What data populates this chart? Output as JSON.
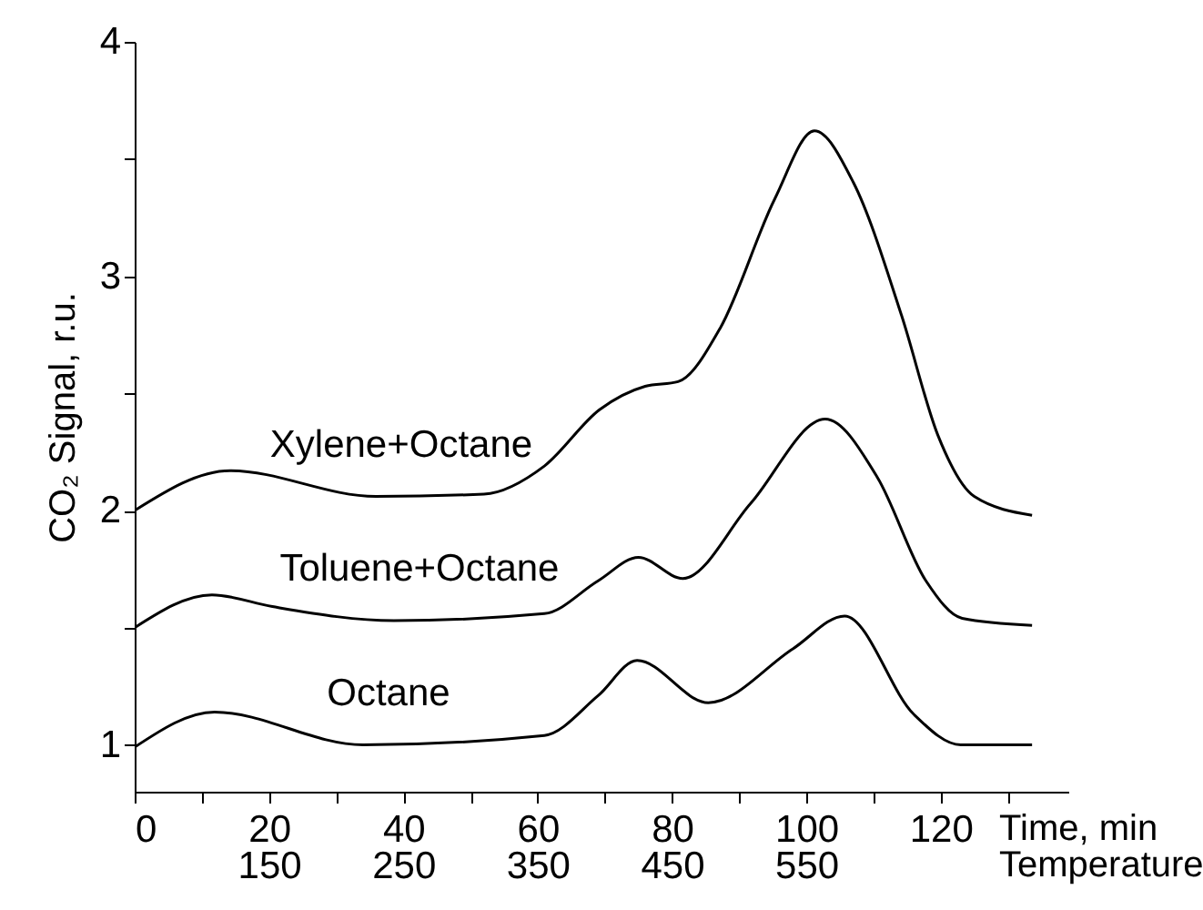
{
  "chart_data": {
    "type": "line",
    "xlabel": "Time, min",
    "x2label": "Temperature",
    "x2lim": [
      50,
      745
    ],
    "x2ticks": [
      150,
      250,
      350,
      450,
      550
    ],
    "ylabel": "CO₂ Signal, r.u.",
    "xlim": [
      0,
      139
    ],
    "ylim": [
      0.8,
      4
    ],
    "xticks": [
      0,
      {
        "value": 10,
        "label": null
      },
      20,
      {
        "value": 30,
        "label": null
      },
      40,
      {
        "value": 50,
        "label": null
      },
      60,
      {
        "value": 70,
        "label": null
      },
      80,
      {
        "value": 90,
        "label": null
      },
      100,
      {
        "value": 110,
        "label": null
      },
      120,
      {
        "value": 130,
        "label": null
      }
    ],
    "yticks": [
      1,
      {
        "value": 1.5,
        "label": null
      },
      2,
      {
        "value": 2.5,
        "label": null
      },
      3,
      {
        "value": 3.5,
        "label": null
      },
      4
    ],
    "grid": false,
    "legend": false,
    "marker": "none",
    "line_style": "solid",
    "series": [
      {
        "name": "Octane",
        "color": "#000000",
        "x": [
          0,
          11.9,
          34,
          61,
          69,
          74.8,
          85.4,
          98,
          105.7,
          116,
          123,
          133.6
        ],
        "values": [
          0.99,
          1.14,
          1.0,
          1.04,
          1.21,
          1.36,
          1.18,
          1.41,
          1.55,
          1.13,
          1.0,
          1.0
        ]
      },
      {
        "name": "Toluene+Octane",
        "color": "#000000",
        "x": [
          0,
          11.5,
          20.5,
          38.6,
          61,
          69,
          75,
          81.6,
          91.7,
          102.8,
          110.6,
          117.8,
          123.2,
          133.6
        ],
        "values": [
          1.5,
          1.64,
          1.59,
          1.53,
          1.56,
          1.7,
          1.8,
          1.71,
          2.03,
          2.39,
          2.14,
          1.7,
          1.54,
          1.51
        ]
      },
      {
        "name": "Xylene+Octane",
        "color": "#000000",
        "x": [
          0,
          14.2,
          35.9,
          52,
          61,
          69.2,
          76,
          80.9,
          87.2,
          95.3,
          101.2,
          107,
          114.2,
          119.6,
          125,
          133.6
        ],
        "values": [
          2.0,
          2.17,
          2.06,
          2.07,
          2.19,
          2.43,
          2.53,
          2.55,
          2.78,
          3.33,
          3.62,
          3.4,
          2.83,
          2.32,
          2.06,
          1.98
        ]
      }
    ]
  }
}
